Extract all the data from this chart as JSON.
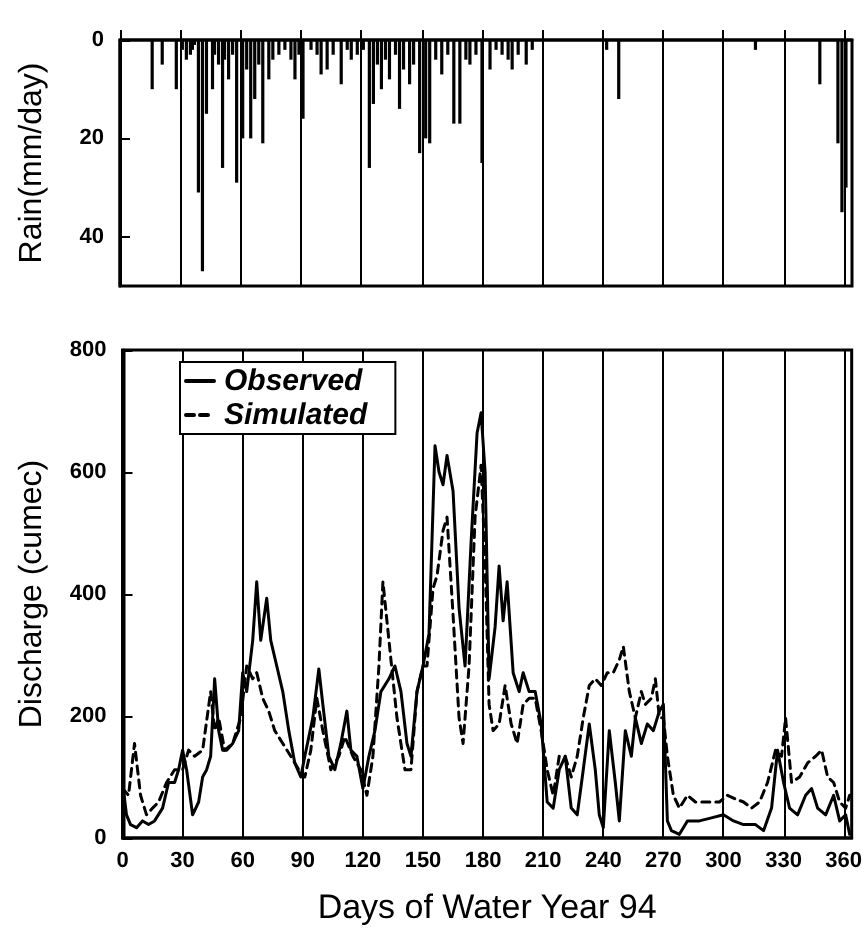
{
  "chart_data": [
    {
      "type": "bar",
      "ylabel": "Rain(mm/day)",
      "xlim": [
        0,
        364
      ],
      "xticks": [
        0,
        30,
        60,
        90,
        120,
        150,
        180,
        210,
        240,
        270,
        300,
        330,
        360
      ],
      "ylim": [
        50,
        0
      ],
      "yticks": [
        0,
        20,
        40
      ],
      "tick_labels": "y",
      "grid": "x",
      "color": "#000000",
      "x": [
        16,
        21,
        28,
        31,
        33,
        35,
        36,
        37,
        39,
        41,
        43,
        46,
        47,
        49,
        51,
        52,
        54,
        56,
        58,
        61,
        63,
        65,
        67,
        69,
        71,
        74,
        76,
        79,
        82,
        85,
        87,
        89,
        91,
        95,
        98,
        100,
        103,
        106,
        110,
        113,
        115,
        118,
        121,
        124,
        126,
        128,
        130,
        132,
        134,
        137,
        139,
        141,
        144,
        146,
        149,
        152,
        154,
        157,
        160,
        163,
        166,
        169,
        172,
        174,
        177,
        180,
        184,
        187,
        190,
        193,
        195,
        198,
        202,
        205,
        242,
        248,
        316,
        348,
        357,
        359,
        361
      ],
      "values": [
        10,
        5,
        10,
        2,
        4,
        3,
        2,
        1,
        31,
        47,
        15,
        10,
        3,
        5,
        26,
        4,
        8,
        3,
        29,
        20,
        6,
        20,
        12,
        5,
        21,
        8,
        4,
        3,
        2,
        4,
        8,
        3,
        16,
        2,
        3,
        7,
        6,
        3,
        9,
        2,
        4,
        3,
        2,
        26,
        13,
        5,
        10,
        4,
        8,
        3,
        14,
        6,
        9,
        5,
        23,
        20,
        21,
        4,
        7,
        3,
        17,
        17,
        4,
        5,
        3,
        25,
        6,
        2,
        3,
        4,
        6,
        3,
        5,
        2,
        2,
        12,
        2,
        9,
        21,
        35,
        30
      ]
    },
    {
      "type": "line",
      "xlabel": "Days of Water Year 94",
      "ylabel": "Discharge (cumec)",
      "xlim": [
        0,
        364
      ],
      "xticks": [
        0,
        30,
        60,
        90,
        120,
        150,
        180,
        210,
        240,
        270,
        300,
        330,
        360
      ],
      "ylim": [
        0,
        800
      ],
      "yticks": [
        0,
        200,
        400,
        600,
        800
      ],
      "grid": "x",
      "legend": "top left",
      "marker": "none",
      "series": [
        {
          "name": "Observed",
          "color": "#000000",
          "line_style": "solid",
          "x": [
            0,
            2,
            4,
            7,
            10,
            13,
            16,
            20,
            23,
            26,
            28,
            30,
            32,
            35,
            38,
            40,
            42,
            44,
            46,
            48,
            50,
            52,
            55,
            58,
            60,
            62,
            65,
            67,
            69,
            72,
            74,
            77,
            80,
            83,
            86,
            89,
            91,
            95,
            98,
            100,
            103,
            106,
            109,
            112,
            114,
            117,
            120,
            123,
            126,
            129,
            133,
            136,
            139,
            142,
            144,
            147,
            150,
            153,
            156,
            158,
            160,
            162,
            165,
            168,
            171,
            174,
            177,
            179,
            181,
            183,
            186,
            188,
            190,
            192,
            195,
            198,
            200,
            203,
            206,
            209,
            212,
            215,
            218,
            221,
            224,
            227,
            230,
            233,
            236,
            238,
            240,
            243,
            246,
            248,
            251,
            254,
            256,
            259,
            262,
            265,
            268,
            270,
            272,
            274,
            278,
            282,
            288,
            294,
            300,
            305,
            310,
            316,
            320,
            324,
            327,
            330,
            333,
            337,
            341,
            344,
            347,
            351,
            355,
            358,
            361,
            363
          ],
          "values": [
            91,
            38,
            22,
            17,
            28,
            22,
            28,
            49,
            91,
            91,
            112,
            144,
            112,
            38,
            59,
            100,
            112,
            134,
            261,
            176,
            144,
            144,
            155,
            176,
            271,
            240,
            324,
            420,
            324,
            393,
            324,
            282,
            240,
            176,
            123,
            100,
            134,
            197,
            277,
            219,
            134,
            112,
            155,
            208,
            144,
            134,
            81,
            134,
            176,
            240,
            261,
            282,
            240,
            155,
            134,
            240,
            282,
            335,
            643,
            600,
            579,
            627,
            569,
            377,
            282,
            484,
            664,
            697,
            600,
            261,
            346,
            446,
            356,
            420,
            271,
            240,
            271,
            240,
            240,
            187,
            59,
            49,
            112,
            134,
            49,
            38,
            112,
            187,
            112,
            38,
            17,
            176,
            91,
            28,
            176,
            134,
            197,
            155,
            187,
            176,
            208,
            219,
            28,
            12,
            6,
            28,
            28,
            33,
            38,
            28,
            22,
            22,
            12,
            49,
            144,
            91,
            49,
            38,
            70,
            81,
            49,
            38,
            70,
            28,
            38,
            6
          ]
        },
        {
          "name": "Simulated",
          "color": "#000000",
          "line_style": "dashed",
          "x": [
            0,
            3,
            6,
            9,
            12,
            15,
            18,
            22,
            26,
            30,
            33,
            36,
            40,
            44,
            46,
            48,
            51,
            55,
            59,
            62,
            65,
            67,
            70,
            73,
            76,
            80,
            84,
            88,
            91,
            94,
            97,
            100,
            104,
            108,
            111,
            115,
            119,
            122,
            125,
            128,
            130,
            133,
            137,
            141,
            144,
            147,
            150,
            152,
            155,
            157,
            160,
            162,
            165,
            168,
            170,
            173,
            176,
            179,
            181,
            183,
            185,
            188,
            191,
            194,
            197,
            200,
            203,
            206,
            209,
            212,
            215,
            218,
            221,
            224,
            227,
            230,
            233,
            236,
            239,
            242,
            245,
            248,
            250,
            253,
            256,
            259,
            261,
            264,
            266,
            268,
            270,
            272,
            275,
            278,
            282,
            286,
            290,
            294,
            298,
            302,
            306,
            310,
            314,
            318,
            322,
            326,
            329,
            331,
            334,
            338,
            342,
            346,
            349,
            352,
            355,
            358,
            361,
            363
          ],
          "values": [
            81,
            70,
            155,
            70,
            38,
            49,
            59,
            91,
            112,
            112,
            144,
            134,
            144,
            240,
            176,
            197,
            144,
            155,
            197,
            282,
            261,
            271,
            229,
            208,
            176,
            155,
            134,
            112,
            100,
            144,
            229,
            176,
            112,
            134,
            166,
            134,
            112,
            70,
            134,
            282,
            420,
            324,
            197,
            112,
            112,
            240,
            282,
            282,
            409,
            430,
            504,
            526,
            366,
            197,
            155,
            282,
            526,
            611,
            452,
            219,
            176,
            187,
            250,
            187,
            155,
            219,
            229,
            229,
            176,
            112,
            70,
            134,
            134,
            100,
            134,
            197,
            250,
            261,
            250,
            271,
            271,
            292,
            314,
            240,
            197,
            240,
            219,
            229,
            261,
            197,
            197,
            134,
            70,
            49,
            70,
            59,
            59,
            59,
            59,
            70,
            64,
            59,
            49,
            59,
            91,
            144,
            134,
            197,
            91,
            100,
            123,
            134,
            144,
            100,
            91,
            59,
            49,
            70
          ]
        }
      ]
    }
  ]
}
